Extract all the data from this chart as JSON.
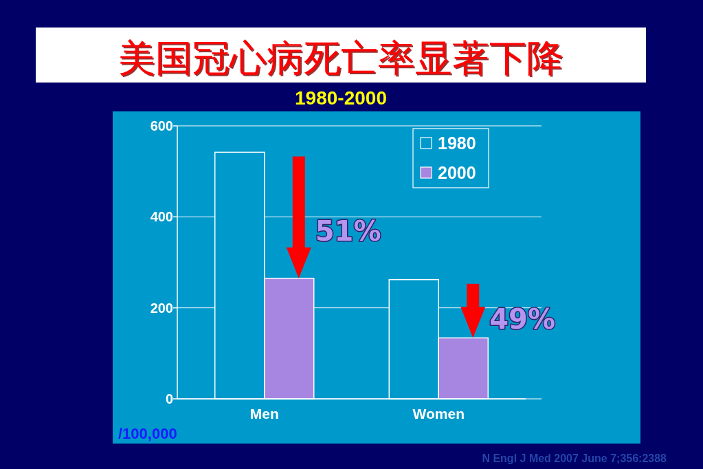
{
  "chart_data": {
    "type": "bar",
    "title": "美国冠心病死亡率显著下降",
    "subtitle": "1980-2000",
    "ylabel": "/100,000",
    "categories": [
      "Men",
      "Women"
    ],
    "series": [
      {
        "name": "1980",
        "color": "#0099cc",
        "values": [
          542,
          262
        ]
      },
      {
        "name": "2000",
        "color": "#a686e0",
        "values": [
          265,
          134
        ]
      }
    ],
    "ylim": [
      0,
      600
    ],
    "yticks": [
      0,
      200,
      400,
      600
    ],
    "grid": "y",
    "legend": "top right",
    "annotations": [
      {
        "text": "51%",
        "x": "Men",
        "y": 370
      },
      {
        "text": "49%",
        "x": "Women",
        "y": 177
      },
      "N Engl J Med 2007 June 7;356:2388"
    ]
  }
}
